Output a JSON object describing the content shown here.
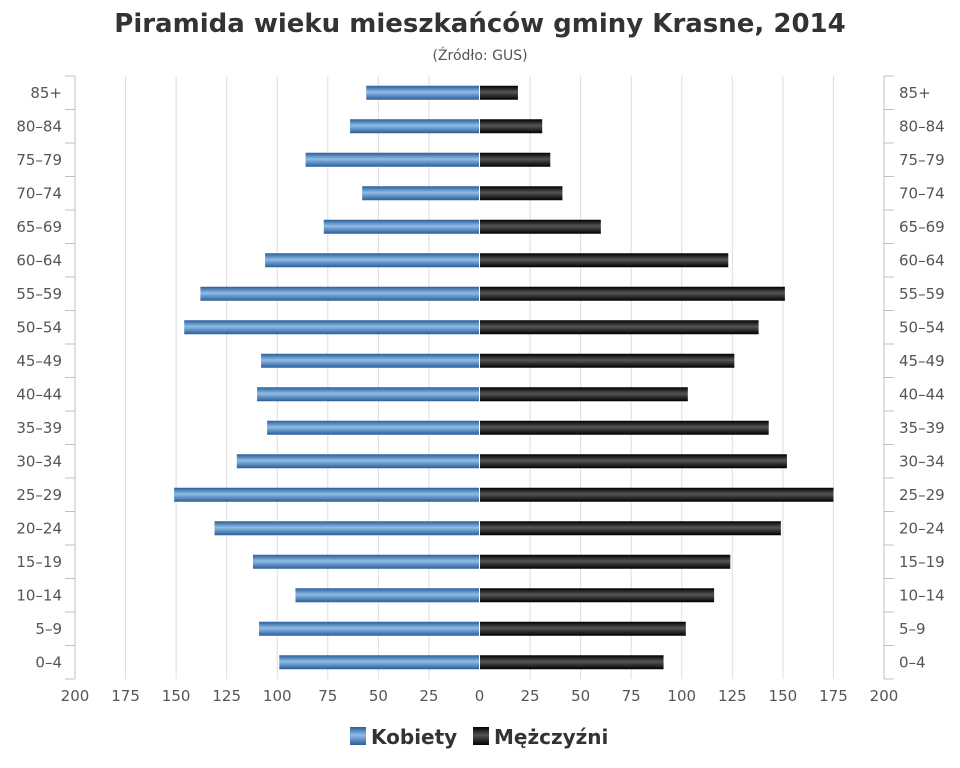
{
  "chart_data": {
    "type": "bar",
    "orientation": "horizontal",
    "layout": "population-pyramid",
    "title": "Piramida wieku mieszkańców gminy Krasne, 2014",
    "subtitle": "(Źródło: GUS)",
    "categories": [
      "85+",
      "80-84",
      "75-79",
      "70-74",
      "65-69",
      "60-64",
      "55-59",
      "50-54",
      "45-49",
      "40-44",
      "35-39",
      "30-34",
      "25-29",
      "20-24",
      "15-19",
      "10-14",
      "5-9",
      "0-4"
    ],
    "series": [
      {
        "name": "Kobiety",
        "side": "left",
        "color": "#3d7cc0",
        "values": [
          56,
          64,
          86,
          58,
          77,
          106,
          138,
          146,
          108,
          110,
          105,
          120,
          151,
          131,
          112,
          91,
          109,
          99
        ]
      },
      {
        "name": "Mężczyźni",
        "side": "right",
        "color": "#111111",
        "values": [
          19,
          31,
          35,
          41,
          60,
          123,
          151,
          138,
          126,
          103,
          143,
          152,
          175,
          149,
          124,
          116,
          102,
          91
        ]
      }
    ],
    "xlim": [
      -200,
      200
    ],
    "xticks": [
      "200",
      "175",
      "150",
      "125",
      "100",
      "75",
      "50",
      "25",
      "0",
      "25",
      "50",
      "75",
      "100",
      "125",
      "150",
      "175",
      "200"
    ],
    "grid": true,
    "legend": "bottom-center"
  }
}
